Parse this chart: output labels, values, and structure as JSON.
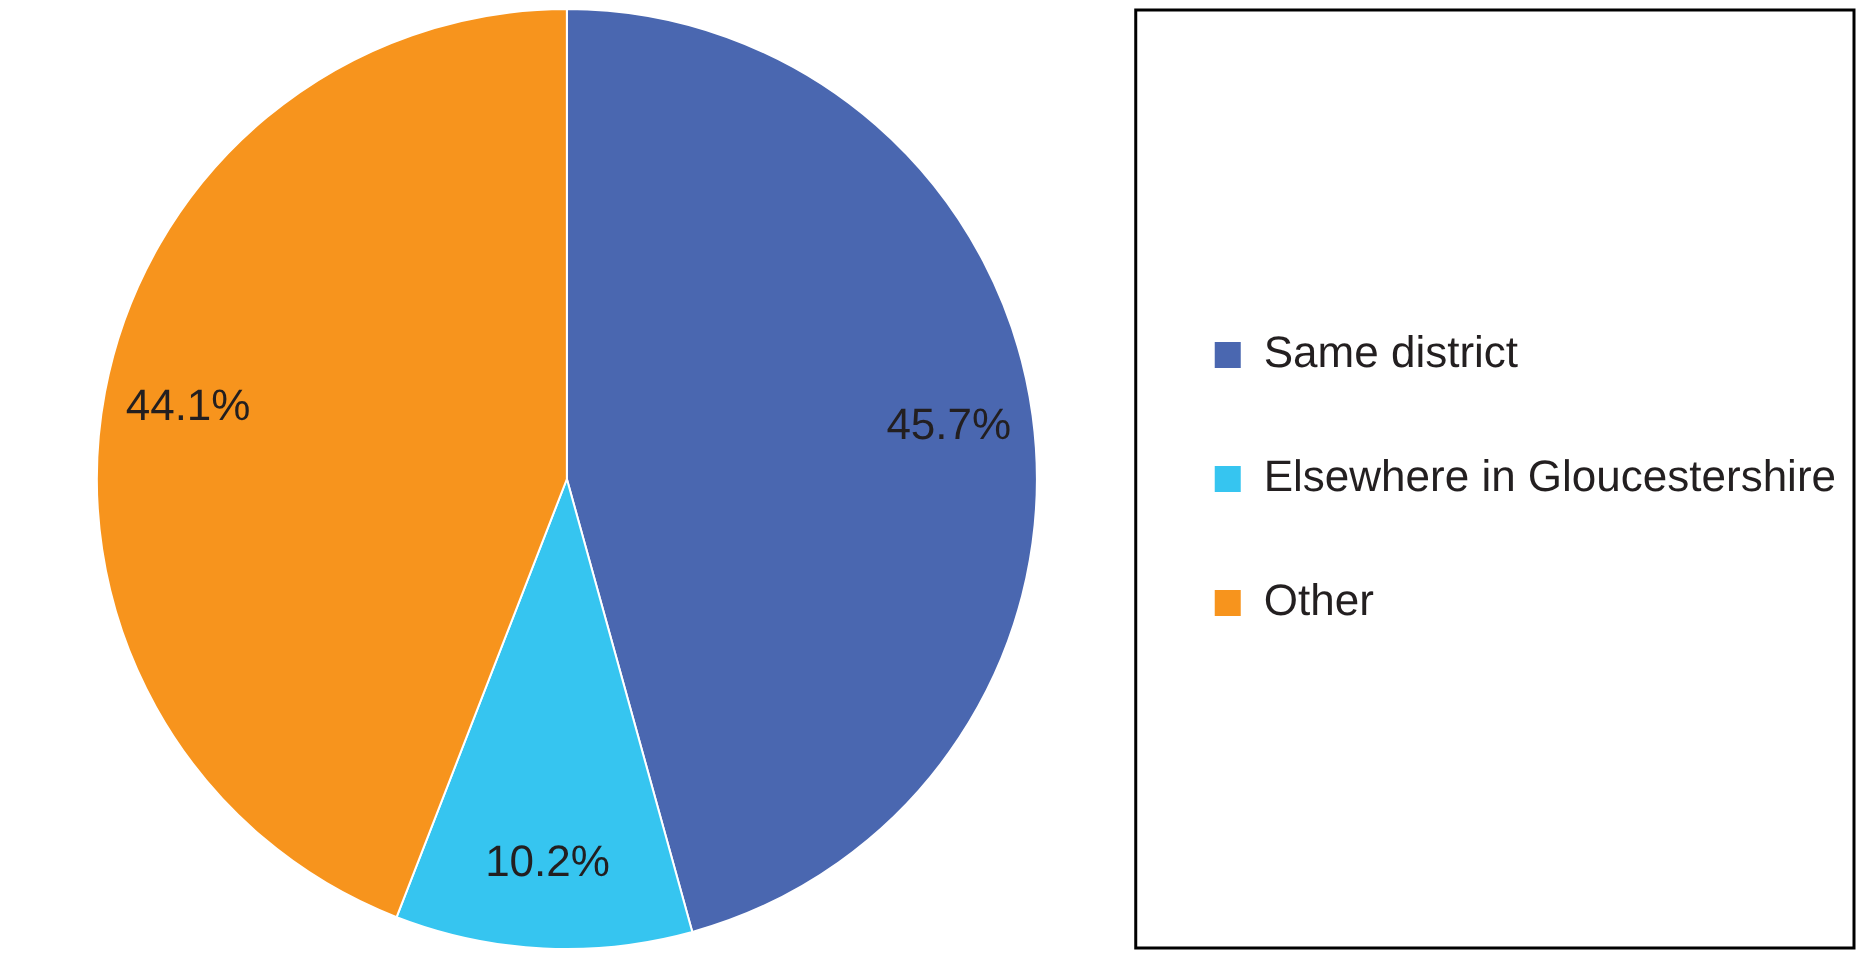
{
  "chart_data": {
    "type": "pie",
    "categories": [
      "Same district",
      "Elsewhere in Gloucestershire",
      "Other"
    ],
    "values": [
      45.7,
      10.2,
      44.1
    ],
    "colors": [
      "#4a67b0",
      "#36c5f0",
      "#f7941d"
    ],
    "value_labels": [
      "45.7%",
      "10.2%",
      "44.1%"
    ],
    "legend": "right"
  }
}
